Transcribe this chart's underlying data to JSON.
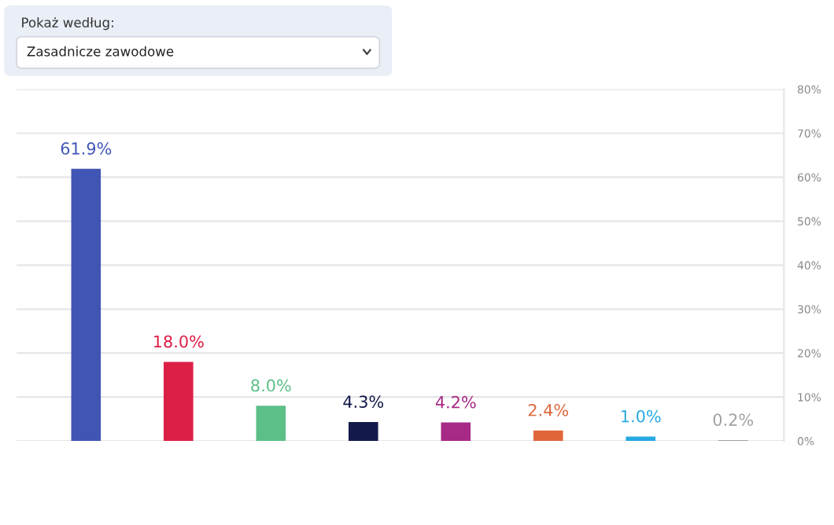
{
  "chart_data": {
    "type": "bar",
    "title": "Pokaż według:",
    "subtitle": "Zasadnicze zawodowe",
    "categories": [
      null,
      null,
      null,
      null,
      null,
      null,
      null,
      null
    ],
    "values": [
      61.9,
      18.0,
      8.0,
      4.3,
      4.2,
      2.4,
      1.0,
      0.2
    ],
    "value_labels": [
      "61.9%",
      "18.0%",
      "8.0%",
      "4.3%",
      "4.2%",
      "2.4%",
      "1.0%",
      "0.2%"
    ],
    "colors": [
      "#4155b5",
      "#dc1f45",
      "#5cbf88",
      "#131a4b",
      "#a62a86",
      "#df663b",
      "#27a9e1",
      "#a0a0a0"
    ],
    "ylim": [
      0,
      80
    ],
    "yticks": [
      {
        "value": 0,
        "label": "0%"
      },
      {
        "value": 10,
        "label": "10%"
      },
      {
        "value": 20,
        "label": "20%"
      },
      {
        "value": 30,
        "label": "30%"
      },
      {
        "value": 40,
        "label": "40%"
      },
      {
        "value": 50,
        "label": "50%"
      },
      {
        "value": 60,
        "label": "60%"
      },
      {
        "value": 70,
        "label": "70%"
      },
      {
        "value": 80,
        "label": "80%"
      }
    ],
    "grid": "y",
    "legend": false
  }
}
